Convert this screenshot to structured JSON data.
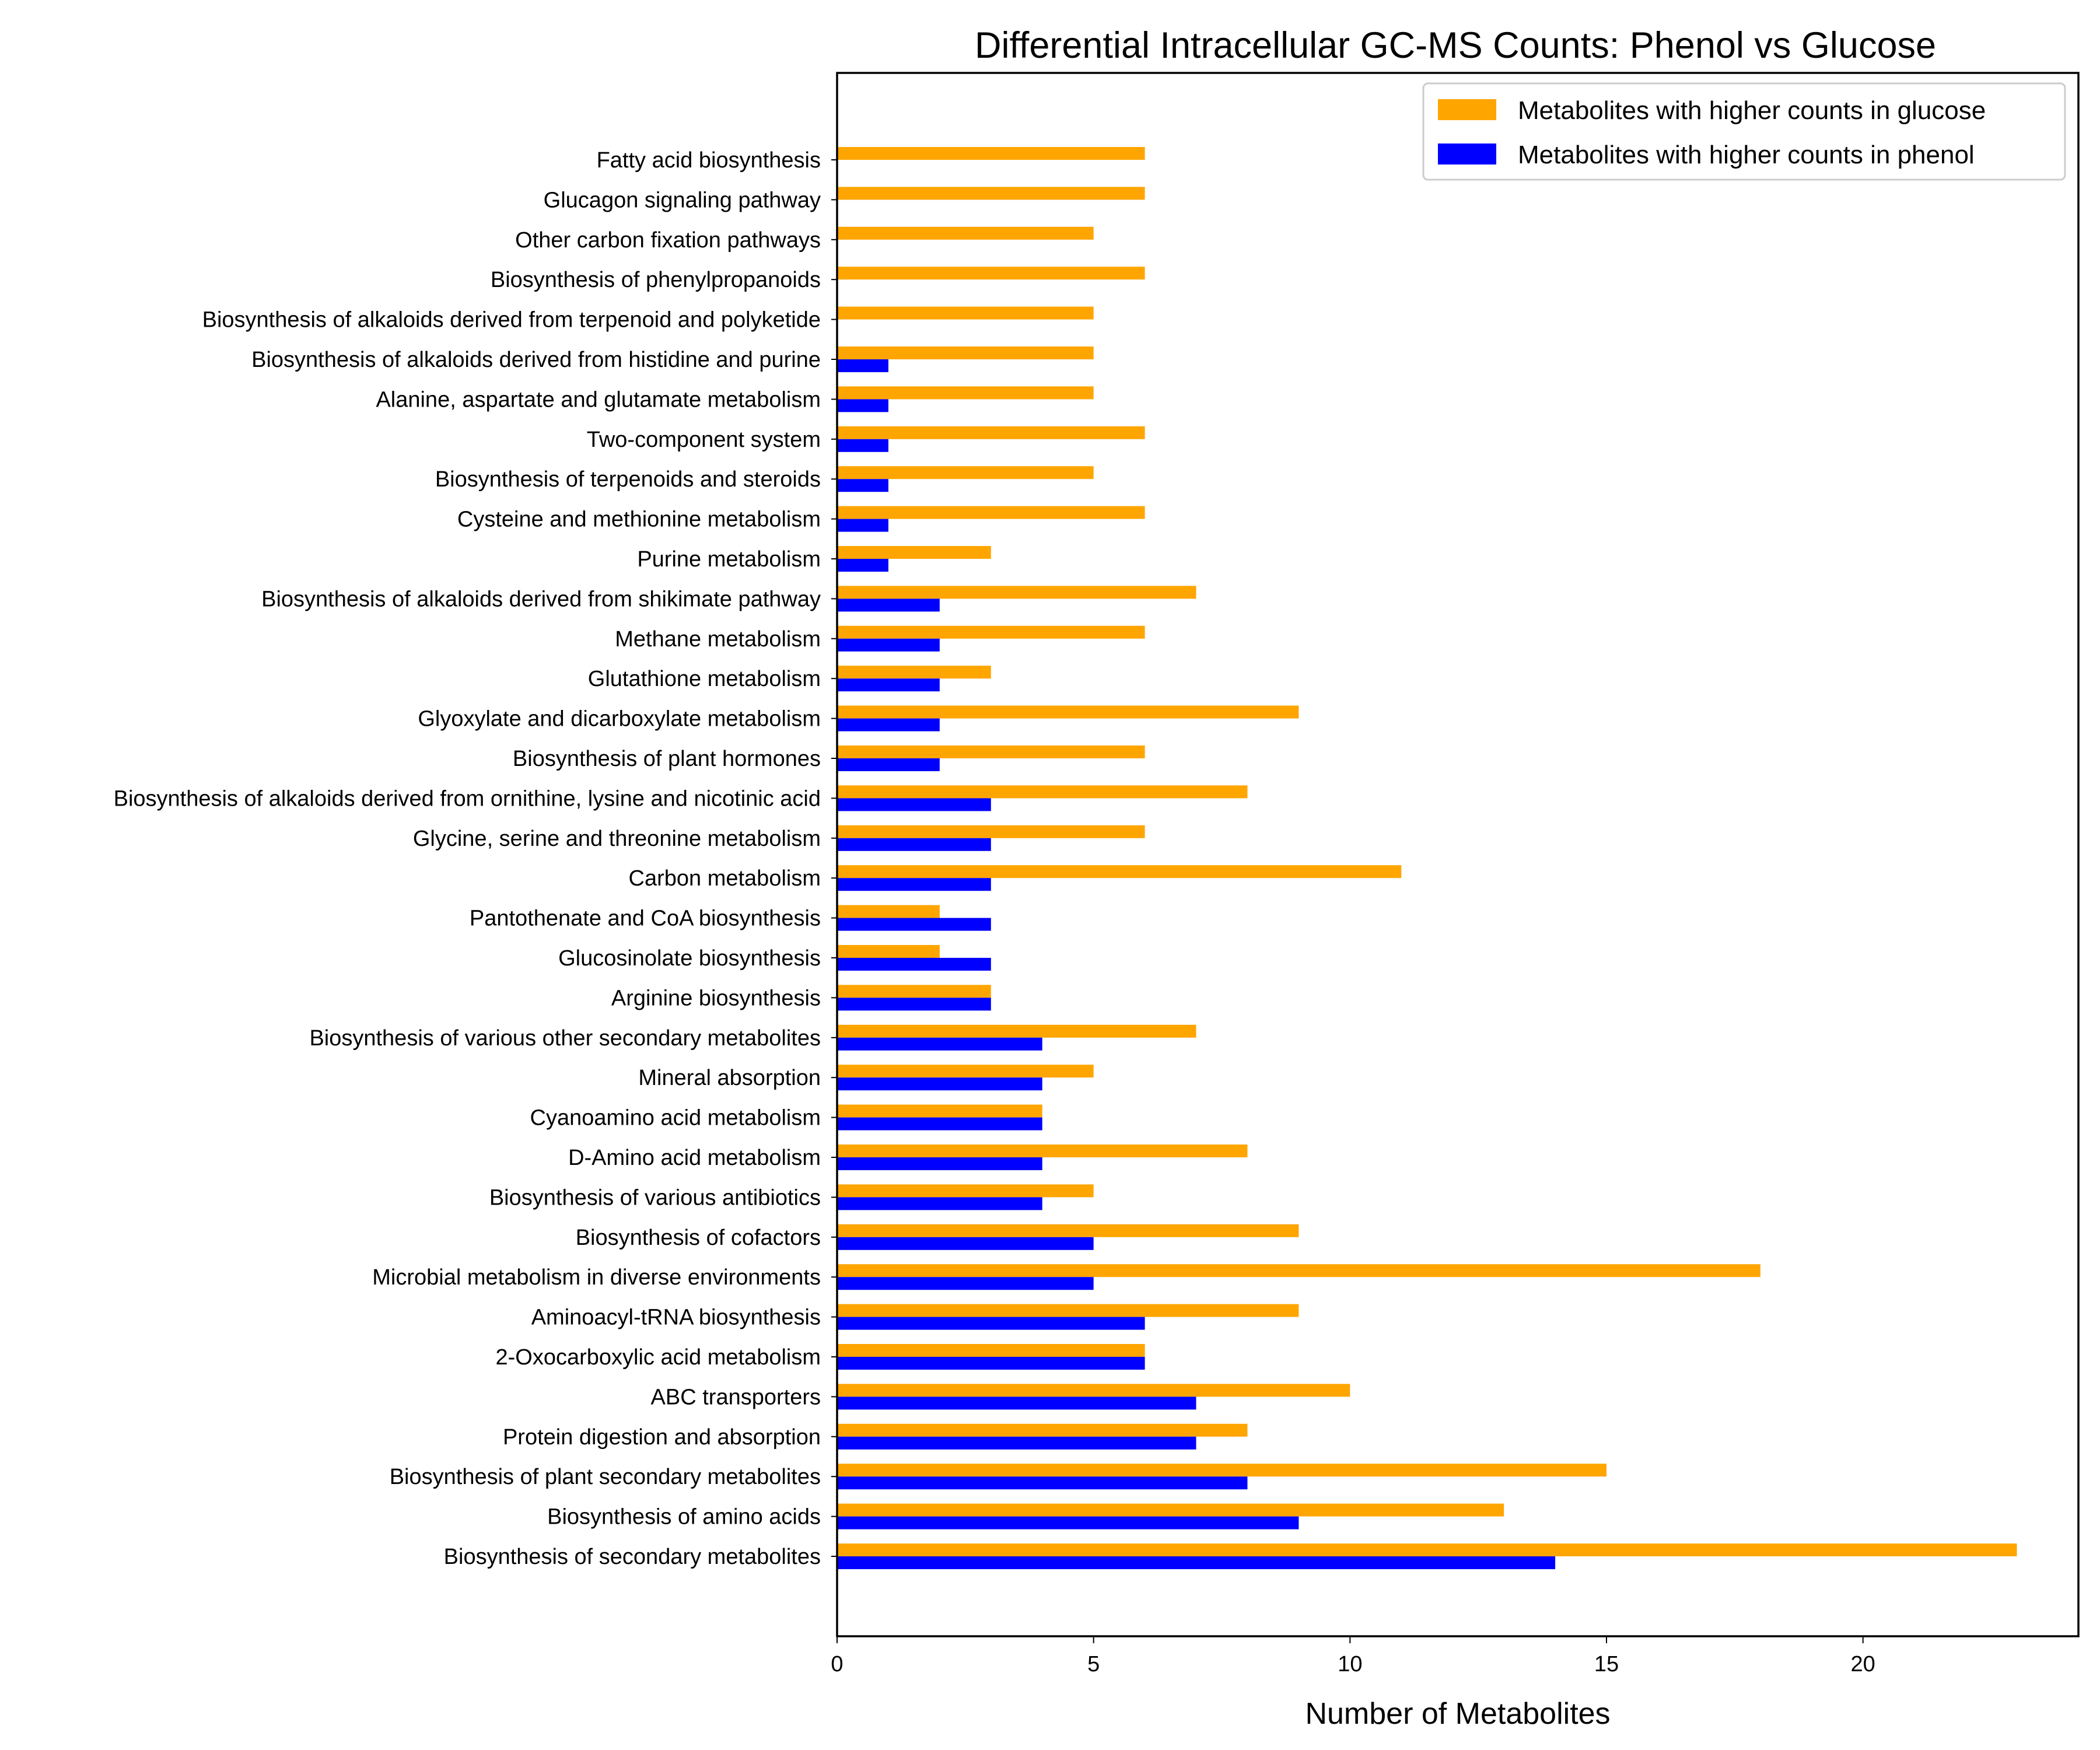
{
  "chart_data": {
    "type": "bar",
    "orientation": "horizontal",
    "title": "Differential Intracellular GC-MS Counts: Phenol vs Glucose",
    "xlabel": "Number of Metabolites",
    "ylabel": "",
    "xlim": [
      0,
      24.2
    ],
    "xticks": [
      0,
      5,
      10,
      15,
      20
    ],
    "grid": false,
    "legend_position": "top-right",
    "categories": [
      "Fatty acid biosynthesis",
      "Glucagon signaling pathway",
      "Other carbon fixation pathways",
      "Biosynthesis of phenylpropanoids",
      "Biosynthesis of alkaloids derived from terpenoid and polyketide",
      "Biosynthesis of alkaloids derived from histidine and purine",
      "Alanine, aspartate and glutamate metabolism",
      "Two-component system",
      "Biosynthesis of terpenoids and steroids",
      "Cysteine and methionine metabolism",
      "Purine metabolism",
      "Biosynthesis of alkaloids derived from shikimate pathway",
      "Methane metabolism",
      "Glutathione metabolism",
      "Glyoxylate and dicarboxylate metabolism",
      "Biosynthesis of plant hormones",
      "Biosynthesis of alkaloids derived from ornithine, lysine and nicotinic acid",
      "Glycine, serine and threonine metabolism",
      "Carbon metabolism",
      "Pantothenate and CoA biosynthesis",
      "Glucosinolate biosynthesis",
      "Arginine biosynthesis",
      "Biosynthesis of various other secondary metabolites",
      "Mineral absorption",
      "Cyanoamino acid metabolism",
      "D-Amino acid metabolism",
      "Biosynthesis of various antibiotics",
      "Biosynthesis of cofactors",
      "Microbial metabolism in diverse environments",
      "Aminoacyl-tRNA biosynthesis",
      "2-Oxocarboxylic acid metabolism",
      "ABC transporters",
      "Protein digestion and absorption",
      "Biosynthesis of plant secondary metabolites",
      "Biosynthesis of amino acids",
      "Biosynthesis of secondary metabolites"
    ],
    "series": [
      {
        "name": "Metabolites with higher counts in glucose",
        "color": "#FFA500",
        "values": [
          6,
          6,
          5,
          6,
          5,
          5,
          5,
          6,
          5,
          6,
          3,
          7,
          6,
          3,
          9,
          6,
          8,
          6,
          11,
          2,
          2,
          3,
          7,
          5,
          4,
          8,
          5,
          9,
          18,
          9,
          6,
          10,
          8,
          15,
          13,
          23
        ]
      },
      {
        "name": "Metabolites with higher counts in phenol",
        "color": "#0000FF",
        "values": [
          0,
          0,
          0,
          0,
          0,
          1,
          1,
          1,
          1,
          1,
          1,
          2,
          2,
          2,
          2,
          2,
          3,
          3,
          3,
          3,
          3,
          3,
          4,
          4,
          4,
          4,
          4,
          5,
          5,
          6,
          6,
          7,
          7,
          8,
          9,
          14
        ]
      }
    ]
  }
}
